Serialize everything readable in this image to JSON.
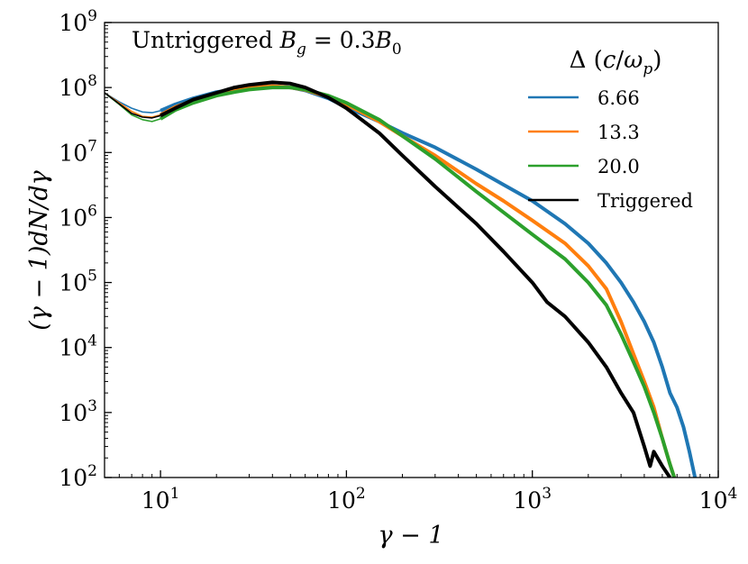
{
  "chart_data": {
    "type": "line",
    "title": "Untriggered B_g = 0.3B_0",
    "title_parts": {
      "prefix": "Untriggered ",
      "var": "B",
      "sub": "g",
      "eq": " = 0.3",
      "var2": "B",
      "sub2": "0"
    },
    "xlabel": "γ − 1",
    "ylabel": "(γ − 1)dN/dγ",
    "xscale": "log",
    "yscale": "log",
    "xlim": [
      5,
      10000
    ],
    "ylim": [
      100,
      1000000000
    ],
    "x_ticks": [
      {
        "value": 10,
        "base": "10",
        "exp": "1"
      },
      {
        "value": 100,
        "base": "10",
        "exp": "2"
      },
      {
        "value": 1000,
        "base": "10",
        "exp": "3"
      },
      {
        "value": 10000,
        "base": "10",
        "exp": "4"
      }
    ],
    "y_ticks": [
      {
        "value": 100,
        "base": "10",
        "exp": "2"
      },
      {
        "value": 1000,
        "base": "10",
        "exp": "3"
      },
      {
        "value": 10000,
        "base": "10",
        "exp": "4"
      },
      {
        "value": 100000,
        "base": "10",
        "exp": "5"
      },
      {
        "value": 1000000,
        "base": "10",
        "exp": "6"
      },
      {
        "value": 10000000,
        "base": "10",
        "exp": "7"
      },
      {
        "value": 100000000,
        "base": "10",
        "exp": "8"
      },
      {
        "value": 1000000000,
        "base": "10",
        "exp": "9"
      }
    ],
    "legend": {
      "title": "Δ (c/ω_p)",
      "title_parts": {
        "delta": "Δ",
        "open": " (",
        "c": "c",
        "slash": "/",
        "omega": "ω",
        "sub": "p",
        "close": ")"
      },
      "position": "top-right",
      "entries": [
        "6.66",
        "13.3",
        "20.0",
        "Triggered"
      ]
    },
    "series": [
      {
        "name": "6.66",
        "color": "#1f77b4",
        "width": "thick",
        "x": [
          5,
          6,
          7,
          8,
          9,
          10,
          12,
          15,
          20,
          25,
          30,
          40,
          50,
          60,
          80,
          100,
          150,
          200,
          300,
          500,
          700,
          1000,
          1500,
          2000,
          2500,
          3000,
          3500,
          4000,
          4500,
          5000,
          5500,
          6000,
          6500,
          7000,
          7500
        ],
        "y": [
          83000000.0,
          60000000.0,
          48000000.0,
          42000000.0,
          41000000.0,
          44000000.0,
          55000000.0,
          68000000.0,
          85000000.0,
          93000000.0,
          100000000.0,
          105000000.0,
          100000000.0,
          90000000.0,
          68000000.0,
          50000000.0,
          30000000.0,
          20000000.0,
          12000000.0,
          5500000.0,
          3200000.0,
          1800000.0,
          800000.0,
          400000.0,
          200000.0,
          100000.0,
          50000.0,
          25000.0,
          12000.0,
          5000.0,
          2000.0,
          1200.0,
          600.0,
          250.0,
          100.0
        ]
      },
      {
        "name": "13.3",
        "color": "#ff7f0e",
        "width": "thick",
        "x": [
          5,
          6,
          7,
          8,
          9,
          10,
          12,
          15,
          20,
          25,
          30,
          40,
          50,
          60,
          80,
          100,
          150,
          200,
          300,
          500,
          700,
          1000,
          1500,
          2000,
          2500,
          3000,
          3500,
          4000,
          4500,
          5000,
          5500,
          5800
        ],
        "y": [
          83000000.0,
          58000000.0,
          43000000.0,
          36000000.0,
          35000000.0,
          38000000.0,
          50000000.0,
          63000000.0,
          80000000.0,
          90000000.0,
          98000000.0,
          105000000.0,
          100000000.0,
          92000000.0,
          72000000.0,
          55000000.0,
          30000000.0,
          18000000.0,
          9000000.0,
          3300000.0,
          1800000.0,
          900000.0,
          400000.0,
          180000.0,
          80000.0,
          25000.0,
          8000.0,
          3000.0,
          1200.0,
          400.0,
          160.0,
          100.0
        ]
      },
      {
        "name": "20.0",
        "color": "#2ca02c",
        "width": "thick",
        "x": [
          5,
          6,
          7,
          8,
          9,
          10,
          12,
          15,
          20,
          25,
          30,
          40,
          50,
          60,
          80,
          100,
          150,
          200,
          300,
          500,
          700,
          1000,
          1500,
          2000,
          2500,
          3000,
          3500,
          4000,
          4500,
          5000,
          5500,
          5800
        ],
        "y": [
          83000000.0,
          55000000.0,
          38000000.0,
          32000000.0,
          30000000.0,
          33000000.0,
          45000000.0,
          58000000.0,
          75000000.0,
          85000000.0,
          93000000.0,
          100000000.0,
          100000000.0,
          93000000.0,
          75000000.0,
          58000000.0,
          32000000.0,
          18000000.0,
          8000000.0,
          2500000.0,
          1200000.0,
          550000.0,
          230000.0,
          100000.0,
          45000.0,
          16000.0,
          6000.0,
          2500.0,
          1000.0,
          400.0,
          160.0,
          100.0
        ]
      },
      {
        "name": "Triggered",
        "color": "#000000",
        "width": "thin-then-thick",
        "x": [
          5,
          6,
          7,
          8,
          9,
          10,
          12,
          15,
          20,
          25,
          30,
          40,
          50,
          60,
          80,
          100,
          150,
          200,
          300,
          500,
          700,
          1000,
          1200,
          1500,
          2000,
          2500,
          3000,
          3500,
          4000,
          4300,
          4500,
          5000,
          5500
        ],
        "y": [
          83000000.0,
          56000000.0,
          40000000.0,
          35000000.0,
          34000000.0,
          37000000.0,
          48000000.0,
          65000000.0,
          83000000.0,
          100000000.0,
          110000000.0,
          120000000.0,
          115000000.0,
          100000000.0,
          70000000.0,
          48000000.0,
          20000000.0,
          9000000.0,
          3000000.0,
          800000.0,
          300000.0,
          100000.0,
          50000.0,
          30000.0,
          12000.0,
          5000.0,
          2000.0,
          1000.0,
          300.0,
          150.0,
          250.0,
          150.0,
          100.0
        ]
      }
    ]
  }
}
